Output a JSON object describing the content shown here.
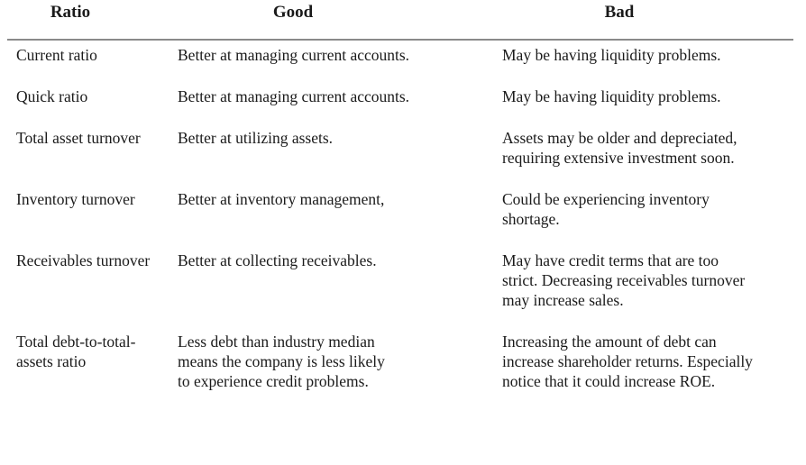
{
  "colors": {
    "background": "#ffffff",
    "text": "#1a1a1a",
    "divider": "#8a8a8a"
  },
  "table": {
    "headers": [
      "Ratio",
      "Good",
      "Bad"
    ],
    "rows": [
      {
        "ratio": [
          "Current ratio"
        ],
        "good": [
          "Better at managing current accounts."
        ],
        "bad": [
          "May be having liquidity problems."
        ]
      },
      {
        "ratio": [
          "Quick ratio"
        ],
        "good": [
          "Better at managing current accounts."
        ],
        "bad": [
          "May be having liquidity problems."
        ]
      },
      {
        "ratio": [
          "Total asset turnover"
        ],
        "good": [
          "Better at utilizing assets."
        ],
        "bad": [
          "Assets may be older and depreciated,",
          "requiring extensive investment soon."
        ]
      },
      {
        "ratio": [
          "Inventory turnover"
        ],
        "good": [
          "Better at inventory management,"
        ],
        "bad": [
          "Could be experiencing inventory",
          "shortage."
        ]
      },
      {
        "ratio": [
          "Receivables turnover"
        ],
        "good": [
          "Better at collecting receivables."
        ],
        "bad": [
          "May have credit terms that are too",
          "strict. Decreasing receivables turnover",
          "may increase sales."
        ]
      },
      {
        "ratio": [
          "Total debt-to-total-",
          "assets ratio"
        ],
        "good": [
          "Less debt than industry median",
          "means the company is less likely",
          "to experience credit problems."
        ],
        "bad": [
          "Increasing the amount of debt can",
          "increase shareholder returns. Especially",
          "notice that it could increase ROE."
        ]
      }
    ]
  }
}
